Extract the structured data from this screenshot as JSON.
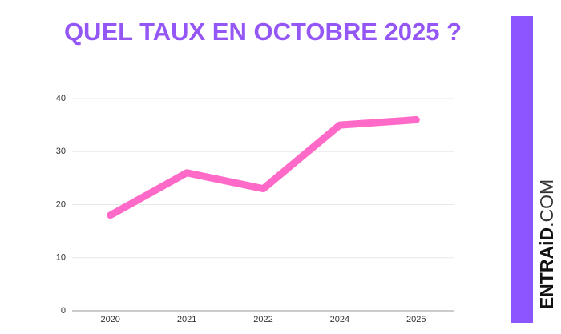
{
  "chart_data": {
    "type": "line",
    "title": "QUEL TAUX EN OCTOBRE 2025 ?",
    "categories": [
      "2020",
      "2021",
      "2022",
      "2024",
      "2025"
    ],
    "values": [
      18,
      26,
      23,
      35,
      36
    ],
    "color": "#ff6ac8",
    "ylim": [
      0,
      40
    ],
    "yticks": [
      0,
      10,
      20,
      30,
      40
    ],
    "grid": true
  },
  "brand": {
    "name": "ENTRAiD",
    "suffix": ".COM"
  }
}
